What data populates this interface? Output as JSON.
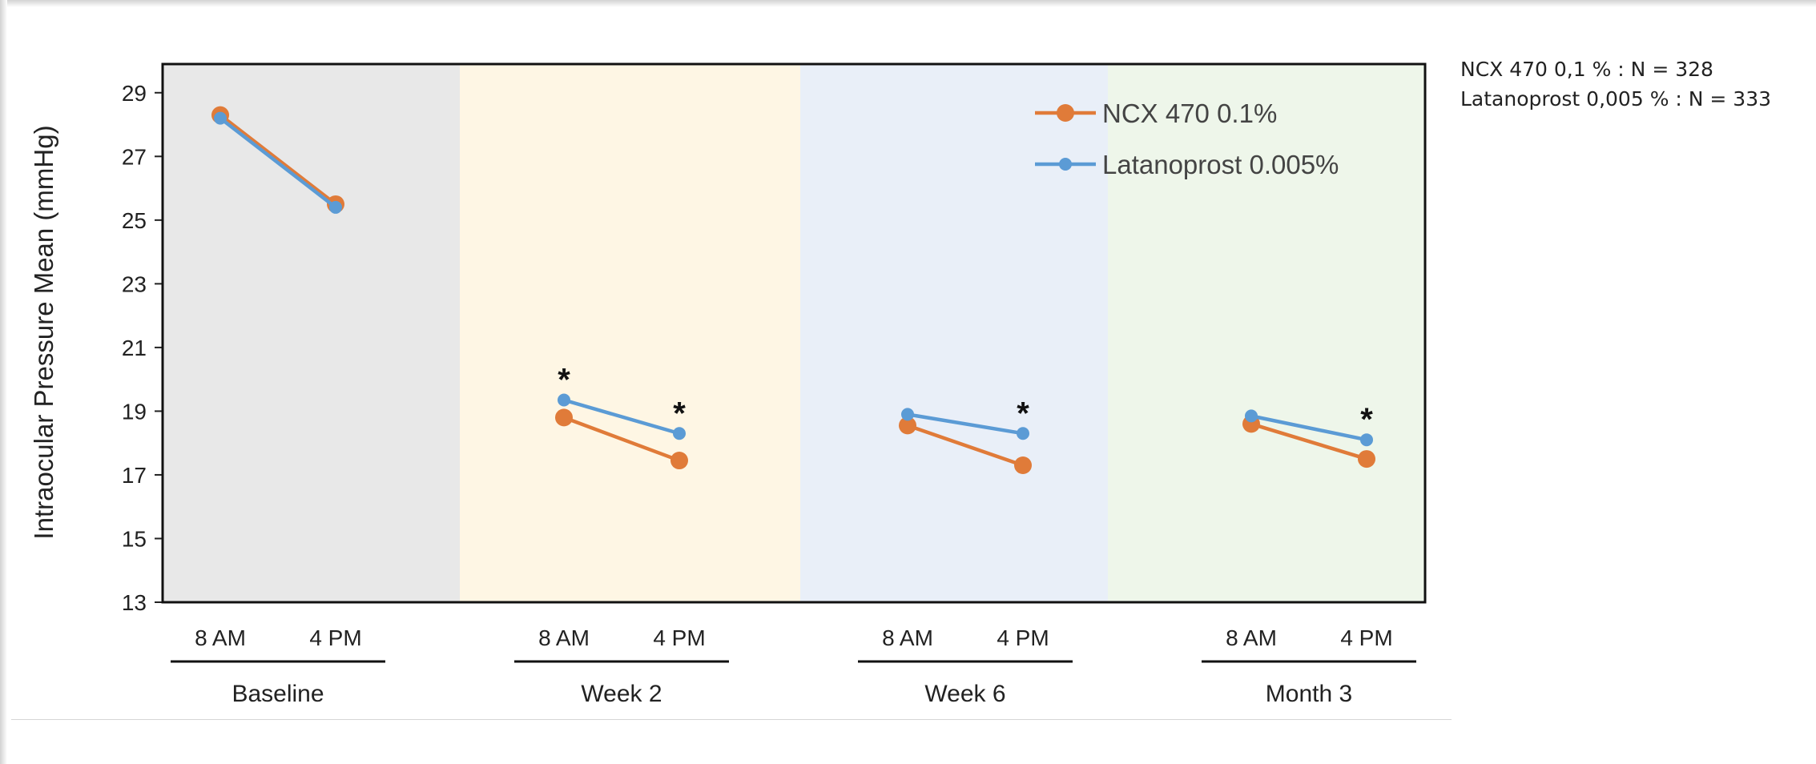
{
  "notes": {
    "line1": "NCX 470 0,1 % : N = 328",
    "line2": "Latanoprost 0,005 % : N = 333"
  },
  "chart_data": {
    "type": "line",
    "title": "",
    "xlabel": "",
    "ylabel": "Intraocular Pressure Mean (mmHg)",
    "ylim": [
      13,
      29.9
    ],
    "yticks": [
      13,
      15,
      17,
      19,
      21,
      23,
      25,
      27,
      29
    ],
    "grid": false,
    "legend_position": "top-right",
    "groups": [
      {
        "label": "Baseline",
        "times": [
          "8 AM",
          "4 PM"
        ],
        "background": "#e8e8e8"
      },
      {
        "label": "Week 2",
        "times": [
          "8 AM",
          "4 PM"
        ],
        "background": "#fef6e4"
      },
      {
        "label": "Week 6",
        "times": [
          "8 AM",
          "4 PM"
        ],
        "background": "#e9eff8"
      },
      {
        "label": "Month 3",
        "times": [
          "8 AM",
          "4 PM"
        ],
        "background": "#eef6ea"
      }
    ],
    "series": [
      {
        "name": "NCX 470 0.1%",
        "color": "#e07b39",
        "marker": "large-circle",
        "values": [
          [
            28.3,
            25.5
          ],
          [
            18.8,
            17.45
          ],
          [
            18.55,
            17.3
          ],
          [
            18.6,
            17.5
          ]
        ]
      },
      {
        "name": "Latanoprost 0.005%",
        "color": "#5b9bd5",
        "marker": "small-circle",
        "values": [
          [
            28.2,
            25.4
          ],
          [
            19.35,
            18.3
          ],
          [
            18.9,
            18.3
          ],
          [
            18.85,
            18.1
          ]
        ]
      }
    ],
    "annotations": [
      {
        "group": 1,
        "time": 0,
        "text": "*"
      },
      {
        "group": 1,
        "time": 1,
        "text": "*"
      },
      {
        "group": 2,
        "time": 1,
        "text": "*"
      },
      {
        "group": 3,
        "time": 1,
        "text": "*"
      }
    ]
  }
}
